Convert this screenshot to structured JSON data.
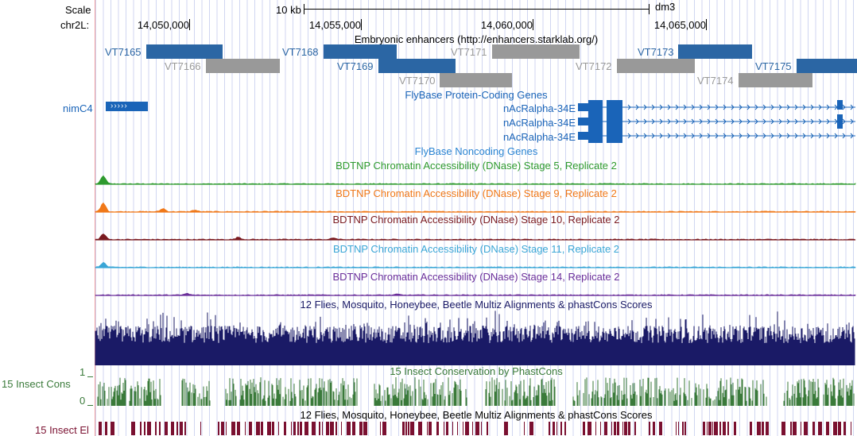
{
  "ruler": {
    "scale_label": "Scale",
    "chrom_label": "chr2L:",
    "scale_bar_text": "10 kb",
    "assembly": "dm3",
    "positions": [
      "14,050,000",
      "14,055,000",
      "14,060,000",
      "14,065,000"
    ]
  },
  "tracks": {
    "enhancers": {
      "title": "Embryonic enhancers (http://enhancers.starklab.org/)",
      "colors": {
        "blue": "#2b66a4",
        "gray": "#999999"
      },
      "items": [
        {
          "name": "VT7165",
          "color": "blue"
        },
        {
          "name": "VT7166",
          "color": "gray"
        },
        {
          "name": "VT7168",
          "color": "blue"
        },
        {
          "name": "VT7169",
          "color": "blue"
        },
        {
          "name": "VT7170",
          "color": "gray"
        },
        {
          "name": "VT7171",
          "color": "gray"
        },
        {
          "name": "VT7172",
          "color": "gray"
        },
        {
          "name": "VT7173",
          "color": "blue"
        },
        {
          "name": "VT7174",
          "color": "gray"
        },
        {
          "name": "VT7175",
          "color": "blue"
        }
      ]
    },
    "flybase_coding": {
      "title": "FlyBase Protein-Coding Genes",
      "color": "#1a64b8",
      "genes": [
        "nimC4",
        "nAcRalpha-34E",
        "nAcRalpha-34E",
        "nAcRalpha-34E"
      ]
    },
    "flybase_noncoding": {
      "title": "FlyBase Noncoding Genes",
      "color": "#2a84d2"
    },
    "dnase": [
      {
        "title": "BDTNP Chromatin Accessibility (DNase) Stage 5, Replicate 2",
        "color": "#2e9a2e"
      },
      {
        "title": "BDTNP Chromatin Accessibility (DNase) Stage 9, Replicate 2",
        "color": "#f07818"
      },
      {
        "title": "BDTNP Chromatin Accessibility (DNase) Stage 10, Replicate 2",
        "color": "#7a1a20"
      },
      {
        "title": "BDTNP Chromatin Accessibility (DNase) Stage 11, Replicate 2",
        "color": "#3aa6d6"
      },
      {
        "title": "BDTNP Chromatin Accessibility (DNase) Stage 14, Replicate 2",
        "color": "#6a2e9a"
      }
    ],
    "multiz": {
      "title": "12 Flies, Mosquito, Honeybee, Beetle Multiz Alignments & phastCons Scores",
      "color": "#1a1a66"
    },
    "phastcons": {
      "title": "15 Insect Conservation by PhastCons",
      "side_label": "15 Insect Cons",
      "ymax": "1",
      "ymin": "0",
      "color": "#3a7a3a"
    },
    "elements": {
      "title": "12 Flies, Mosquito, Honeybee, Beetle Multiz Alignments & phastCons Scores",
      "side_label": "15 Insect El",
      "color": "#7a1030"
    }
  }
}
